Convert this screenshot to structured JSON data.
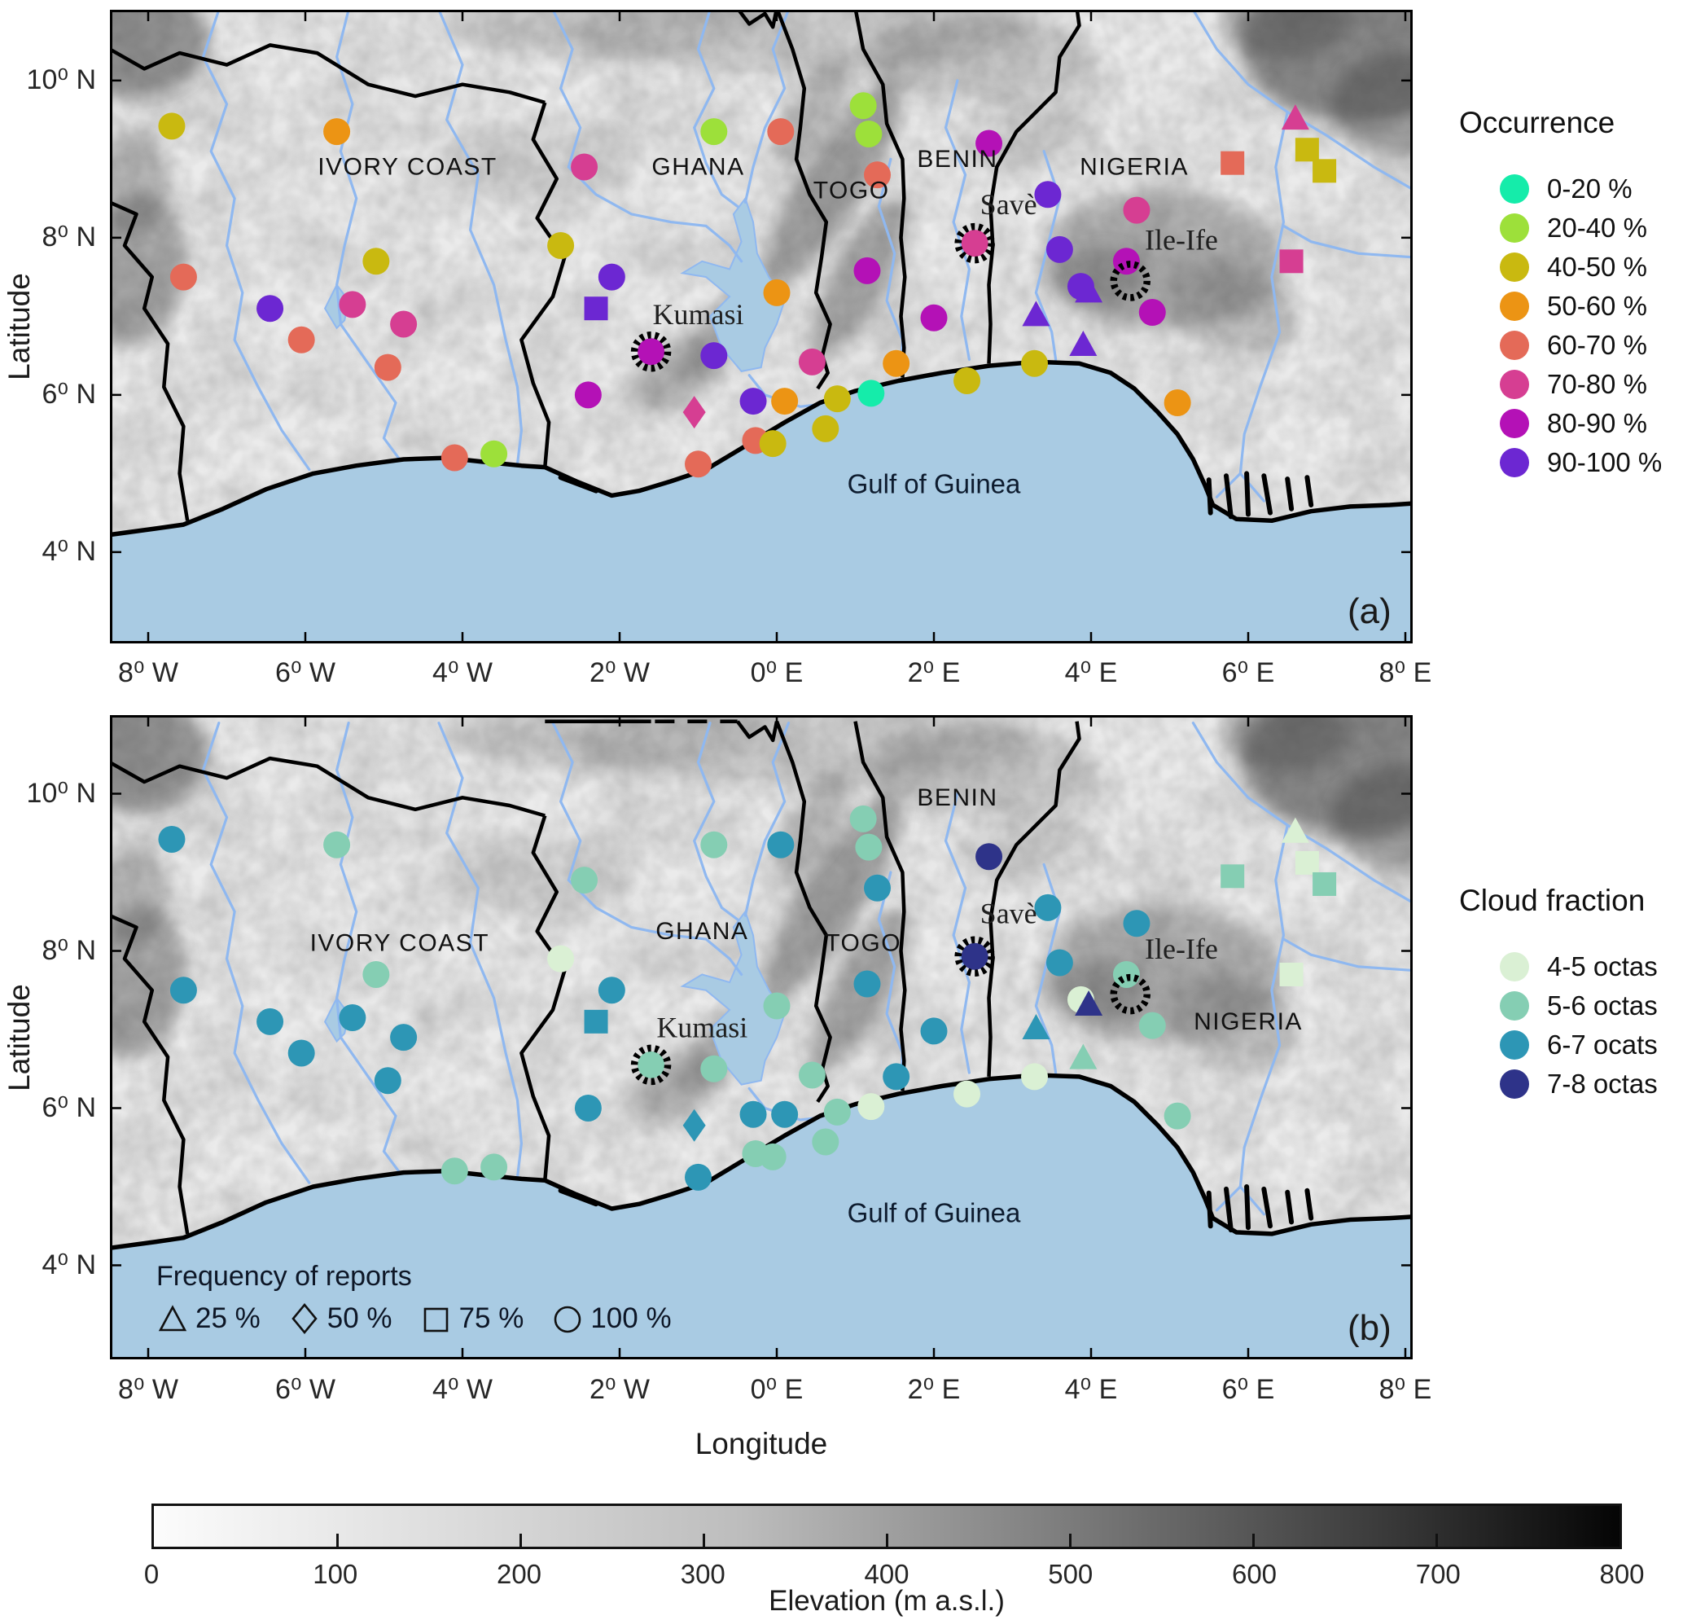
{
  "figure": {
    "panel_a_label": "(a)",
    "panel_b_label": "(b)"
  },
  "axes": {
    "xlabel": "Longitude",
    "ylabel": "Latitude",
    "lon_ticks": [
      {
        "lon": -8,
        "label": "8⁰ W"
      },
      {
        "lon": -6,
        "label": "6⁰ W"
      },
      {
        "lon": -4,
        "label": "4⁰ W"
      },
      {
        "lon": -2,
        "label": "2⁰ W"
      },
      {
        "lon": 0,
        "label": "0⁰ E"
      },
      {
        "lon": 2,
        "label": "2⁰ E"
      },
      {
        "lon": 4,
        "label": "4⁰ E"
      },
      {
        "lon": 6,
        "label": "6⁰ E"
      },
      {
        "lon": 8,
        "label": "8⁰ E"
      }
    ],
    "lat_ticks": [
      {
        "lat": 10,
        "label": "10⁰ N"
      },
      {
        "lat": 8,
        "label": "8⁰ N"
      },
      {
        "lat": 6,
        "label": "6⁰ N"
      },
      {
        "lat": 4,
        "label": "4⁰ N"
      }
    ]
  },
  "legend_occurrence": {
    "title": "Occurrence",
    "items": [
      {
        "label": "0-20 %",
        "color": "#15ecaa"
      },
      {
        "label": "20-40 %",
        "color": "#9de03a"
      },
      {
        "label": "40-50 %",
        "color": "#c9b910"
      },
      {
        "label": "50-60 %",
        "color": "#ec9414"
      },
      {
        "label": "60-70 %",
        "color": "#e46a58"
      },
      {
        "label": "70-80 %",
        "color": "#d63e92"
      },
      {
        "label": "80-90 %",
        "color": "#b411b6"
      },
      {
        "label": "90-100 %",
        "color": "#6c27d2"
      }
    ]
  },
  "legend_cloud": {
    "title": "Cloud fraction",
    "items": [
      {
        "label": "4-5 octas",
        "color": "#daf0d4"
      },
      {
        "label": "5-6 octas",
        "color": "#85ceb3"
      },
      {
        "label": "6-7 ocats",
        "color": "#2d96b5"
      },
      {
        "label": "7-8 octas",
        "color": "#2e3389"
      }
    ]
  },
  "frequency_legend": {
    "title": "Frequency of reports",
    "items": [
      {
        "shape": "triangle",
        "label": "25 %"
      },
      {
        "shape": "diamond",
        "label": "50 %"
      },
      {
        "shape": "square",
        "label": "75 %"
      },
      {
        "shape": "circle",
        "label": "100 %"
      }
    ]
  },
  "colorbar": {
    "title": "Elevation (m a.s.l.)",
    "tick_labels": [
      "0",
      "100",
      "200",
      "300",
      "400",
      "500",
      "600",
      "700",
      "800"
    ],
    "gradient_start": "#fcfcfc",
    "gradient_end": "#050505"
  },
  "map_labels": {
    "panel_a": [
      {
        "text": "IVORY COAST",
        "lon": -4.7,
        "lat": 8.8,
        "kind": "country"
      },
      {
        "text": "GHANA",
        "lon": -1.0,
        "lat": 8.8,
        "kind": "country"
      },
      {
        "text": "TOGO",
        "lon": 0.95,
        "lat": 8.5,
        "kind": "country"
      },
      {
        "text": "BENIN",
        "lon": 2.3,
        "lat": 8.9,
        "kind": "country"
      },
      {
        "text": "NIGERIA",
        "lon": 4.55,
        "lat": 8.8,
        "kind": "country"
      },
      {
        "text": "Savè",
        "lon": 2.95,
        "lat": 8.3,
        "kind": "city"
      },
      {
        "text": "Kumasi",
        "lon": -1.0,
        "lat": 6.9,
        "kind": "city"
      },
      {
        "text": "Ile-Ife",
        "lon": 5.15,
        "lat": 7.85,
        "kind": "city"
      },
      {
        "text": "Gulf of Guinea",
        "lon": 2.0,
        "lat": 4.75,
        "kind": "sea"
      }
    ],
    "panel_b": [
      {
        "text": "IVORY COAST",
        "lon": -4.8,
        "lat": 8.0,
        "kind": "country"
      },
      {
        "text": "GHANA",
        "lon": -0.95,
        "lat": 8.15,
        "kind": "country"
      },
      {
        "text": "TOGO",
        "lon": 1.1,
        "lat": 8.0,
        "kind": "country"
      },
      {
        "text": "BENIN",
        "lon": 2.3,
        "lat": 9.85,
        "kind": "country"
      },
      {
        "text": "NIGERIA",
        "lon": 6.0,
        "lat": 7.0,
        "kind": "country"
      },
      {
        "text": "Savè",
        "lon": 2.95,
        "lat": 8.35,
        "kind": "city"
      },
      {
        "text": "Kumasi",
        "lon": -0.95,
        "lat": 6.9,
        "kind": "city"
      },
      {
        "text": "Ile-Ife",
        "lon": 5.15,
        "lat": 7.9,
        "kind": "city"
      },
      {
        "text": "Gulf of Guinea",
        "lon": 2.0,
        "lat": 4.55,
        "kind": "sea"
      }
    ]
  },
  "chart_data": {
    "type": "scatter",
    "title": "Fog/low-cloud occurrence (a) and cloud fraction (b) at synoptic stations over southern West Africa",
    "lon_range": [
      -8.5,
      8.1
    ],
    "lat_range": [
      2.9,
      11.0
    ],
    "panels": [
      {
        "id": "a",
        "variable": "Occurrence",
        "classes": [
          "0-20 %",
          "20-40 %",
          "40-50 %",
          "50-60 %",
          "60-70 %",
          "70-80 %",
          "80-90 %",
          "90-100 %"
        ]
      },
      {
        "id": "b",
        "variable": "Cloud fraction",
        "classes": [
          "4-5 octas",
          "5-6 octas",
          "6-7 ocats",
          "7-8 octas"
        ]
      }
    ],
    "shape_meaning": {
      "triangle": "25 % of reports",
      "diamond": "50 % of reports",
      "square": "75 % of reports",
      "circle": "100 % of reports",
      "ring": "highlighted station"
    },
    "stations": [
      {
        "lon": -7.7,
        "lat": 9.42,
        "shape": "circle",
        "occurrence": "40-50 %",
        "cloud": "6-7 ocats"
      },
      {
        "lon": -5.6,
        "lat": 9.35,
        "shape": "circle",
        "occurrence": "50-60 %",
        "cloud": "5-6 octas"
      },
      {
        "lon": -7.55,
        "lat": 7.5,
        "shape": "circle",
        "occurrence": "60-70 %",
        "cloud": "6-7 ocats"
      },
      {
        "lon": -5.1,
        "lat": 7.7,
        "shape": "circle",
        "occurrence": "40-50 %",
        "cloud": "5-6 octas"
      },
      {
        "lon": -6.45,
        "lat": 7.1,
        "shape": "circle",
        "occurrence": "90-100 %",
        "cloud": "6-7 ocats"
      },
      {
        "lon": -5.4,
        "lat": 7.15,
        "shape": "circle",
        "occurrence": "70-80 %",
        "cloud": "6-7 ocats"
      },
      {
        "lon": -4.75,
        "lat": 6.9,
        "shape": "circle",
        "occurrence": "70-80 %",
        "cloud": "6-7 ocats"
      },
      {
        "lon": -6.05,
        "lat": 6.7,
        "shape": "circle",
        "occurrence": "60-70 %",
        "cloud": "6-7 ocats"
      },
      {
        "lon": -4.95,
        "lat": 6.35,
        "shape": "circle",
        "occurrence": "60-70 %",
        "cloud": "6-7 ocats"
      },
      {
        "lon": -4.1,
        "lat": 5.2,
        "shape": "circle",
        "occurrence": "60-70 %",
        "cloud": "5-6 octas"
      },
      {
        "lon": -3.6,
        "lat": 5.25,
        "shape": "circle",
        "occurrence": "20-40 %",
        "cloud": "5-6 octas"
      },
      {
        "lon": -2.45,
        "lat": 8.9,
        "shape": "circle",
        "occurrence": "70-80 %",
        "cloud": "5-6 octas"
      },
      {
        "lon": -0.8,
        "lat": 9.35,
        "shape": "circle",
        "occurrence": "20-40 %",
        "cloud": "5-6 octas"
      },
      {
        "lon": 0.05,
        "lat": 9.35,
        "shape": "circle",
        "occurrence": "60-70 %",
        "cloud": "6-7 ocats"
      },
      {
        "lon": -2.75,
        "lat": 7.9,
        "shape": "circle",
        "occurrence": "40-50 %",
        "cloud": "4-5 octas"
      },
      {
        "lon": -2.1,
        "lat": 7.5,
        "shape": "circle",
        "occurrence": "90-100 %",
        "cloud": "6-7 ocats"
      },
      {
        "lon": -2.3,
        "lat": 7.1,
        "shape": "square",
        "occurrence": "90-100 %",
        "cloud": "6-7 ocats"
      },
      {
        "lon": -1.6,
        "lat": 6.55,
        "shape": "circle",
        "occurrence": "80-90 %",
        "cloud": "5-6 octas",
        "ring": "Kumasi"
      },
      {
        "lon": -0.8,
        "lat": 6.5,
        "shape": "circle",
        "occurrence": "90-100 %",
        "cloud": "5-6 octas"
      },
      {
        "lon": -2.4,
        "lat": 6.0,
        "shape": "circle",
        "occurrence": "80-90 %",
        "cloud": "6-7 ocats"
      },
      {
        "lon": -1.05,
        "lat": 5.78,
        "shape": "diamond",
        "occurrence": "70-80 %",
        "cloud": "6-7 ocats"
      },
      {
        "lon": -1.0,
        "lat": 5.12,
        "shape": "circle",
        "occurrence": "60-70 %",
        "cloud": "6-7 ocats"
      },
      {
        "lon": -0.27,
        "lat": 5.42,
        "shape": "circle",
        "occurrence": "60-70 %",
        "cloud": "5-6 octas"
      },
      {
        "lon": -0.05,
        "lat": 5.38,
        "shape": "circle",
        "occurrence": "40-50 %",
        "cloud": "5-6 octas"
      },
      {
        "lon": 0.62,
        "lat": 5.57,
        "shape": "circle",
        "occurrence": "40-50 %",
        "cloud": "5-6 octas"
      },
      {
        "lon": 0.77,
        "lat": 5.95,
        "shape": "circle",
        "occurrence": "40-50 %",
        "cloud": "5-6 octas"
      },
      {
        "lon": -0.3,
        "lat": 5.92,
        "shape": "circle",
        "occurrence": "90-100 %",
        "cloud": "6-7 ocats"
      },
      {
        "lon": 0.1,
        "lat": 5.92,
        "shape": "circle",
        "occurrence": "50-60 %",
        "cloud": "6-7 ocats"
      },
      {
        "lon": 0.0,
        "lat": 7.3,
        "shape": "circle",
        "occurrence": "50-60 %",
        "cloud": "5-6 octas"
      },
      {
        "lon": 0.45,
        "lat": 6.42,
        "shape": "circle",
        "occurrence": "70-80 %",
        "cloud": "5-6 octas"
      },
      {
        "lon": 1.2,
        "lat": 6.02,
        "shape": "circle",
        "occurrence": "0-20 %",
        "cloud": "4-5 octas"
      },
      {
        "lon": 1.52,
        "lat": 6.4,
        "shape": "circle",
        "occurrence": "50-60 %",
        "cloud": "6-7 ocats"
      },
      {
        "lon": 2.42,
        "lat": 6.18,
        "shape": "circle",
        "occurrence": "40-50 %",
        "cloud": "4-5 octas"
      },
      {
        "lon": 1.15,
        "lat": 7.58,
        "shape": "circle",
        "occurrence": "80-90 %",
        "cloud": "6-7 ocats"
      },
      {
        "lon": 1.28,
        "lat": 8.8,
        "shape": "circle",
        "occurrence": "60-70 %",
        "cloud": "6-7 ocats"
      },
      {
        "lon": 1.1,
        "lat": 9.68,
        "shape": "circle",
        "occurrence": "20-40 %",
        "cloud": "5-6 octas"
      },
      {
        "lon": 1.17,
        "lat": 9.32,
        "shape": "circle",
        "occurrence": "20-40 %",
        "cloud": "5-6 octas"
      },
      {
        "lon": 2.0,
        "lat": 6.98,
        "shape": "circle",
        "occurrence": "80-90 %",
        "cloud": "6-7 ocats"
      },
      {
        "lon": 2.52,
        "lat": 7.93,
        "shape": "circle",
        "occurrence": "70-80 %",
        "cloud": "7-8 octas",
        "ring": "Savè"
      },
      {
        "lon": 2.7,
        "lat": 9.2,
        "shape": "circle",
        "occurrence": "80-90 %",
        "cloud": "7-8 octas"
      },
      {
        "lon": 3.45,
        "lat": 8.55,
        "shape": "circle",
        "occurrence": "90-100 %",
        "cloud": "6-7 ocats"
      },
      {
        "lon": 4.58,
        "lat": 8.35,
        "shape": "circle",
        "occurrence": "70-80 %",
        "cloud": "6-7 ocats"
      },
      {
        "lon": 3.6,
        "lat": 7.85,
        "shape": "circle",
        "occurrence": "90-100 %",
        "cloud": "6-7 ocats"
      },
      {
        "lon": 4.45,
        "lat": 7.7,
        "shape": "circle",
        "occurrence": "80-90 %",
        "cloud": "5-6 octas"
      },
      {
        "lon": 4.5,
        "lat": 7.45,
        "shape": "ring",
        "ring": "Ile-Ife"
      },
      {
        "lon": 3.87,
        "lat": 7.38,
        "shape": "circle",
        "occurrence": "90-100 %",
        "cloud": "4-5 octas"
      },
      {
        "lon": 3.97,
        "lat": 7.3,
        "shape": "triangle",
        "occurrence": "90-100 %",
        "cloud": "7-8 octas"
      },
      {
        "lon": 3.3,
        "lat": 7.0,
        "shape": "triangle",
        "occurrence": "90-100 %",
        "cloud": "6-7 ocats"
      },
      {
        "lon": 3.9,
        "lat": 6.62,
        "shape": "triangle",
        "occurrence": "90-100 %",
        "cloud": "5-6 octas"
      },
      {
        "lon": 4.78,
        "lat": 7.05,
        "shape": "circle",
        "occurrence": "80-90 %",
        "cloud": "5-6 octas"
      },
      {
        "lon": 3.28,
        "lat": 6.4,
        "shape": "circle",
        "occurrence": "40-50 %",
        "cloud": "4-5 octas"
      },
      {
        "lon": 5.1,
        "lat": 5.9,
        "shape": "circle",
        "occurrence": "50-60 %",
        "cloud": "5-6 octas"
      },
      {
        "lon": 6.6,
        "lat": 9.5,
        "shape": "triangle",
        "occurrence": "70-80 %",
        "cloud": "4-5 octas"
      },
      {
        "lon": 5.8,
        "lat": 8.95,
        "shape": "square",
        "occurrence": "60-70 %",
        "cloud": "5-6 octas"
      },
      {
        "lon": 6.75,
        "lat": 9.12,
        "shape": "square",
        "occurrence": "40-50 %",
        "cloud": "4-5 octas"
      },
      {
        "lon": 6.97,
        "lat": 8.85,
        "shape": "square",
        "occurrence": "40-50 %",
        "cloud": "5-6 octas"
      },
      {
        "lon": 6.55,
        "lat": 7.7,
        "shape": "square",
        "occurrence": "70-80 %",
        "cloud": "4-5 octas"
      }
    ]
  }
}
